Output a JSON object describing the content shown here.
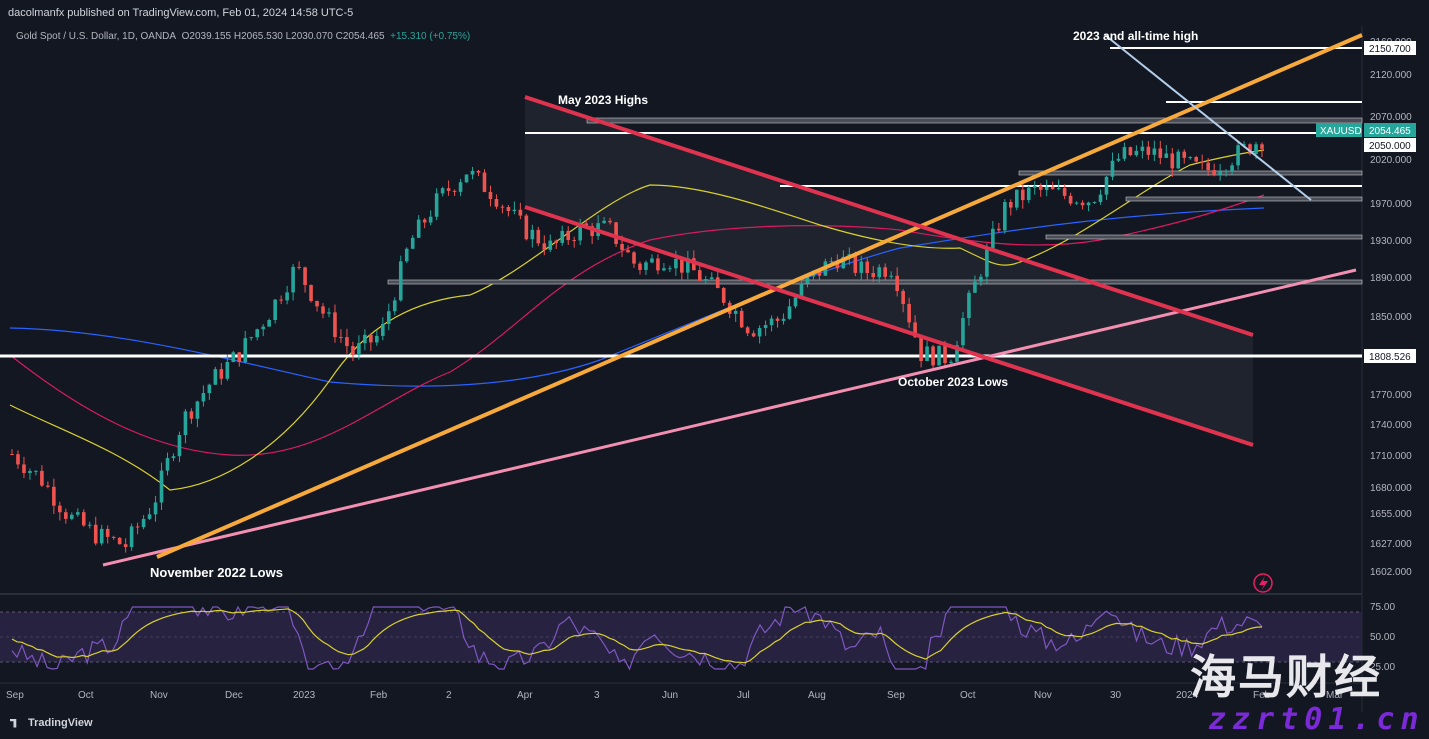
{
  "header": {
    "publisher": "dacolmanfx published on TradingView.com, Feb 01, 2024 14:58 UTC-5",
    "symbol": "Gold Spot / U.S. Dollar, 1D, OANDA",
    "ohlc": "O2039.155  H2065.530  L2030.070  C2054.465",
    "change": "+15.310 (+0.75%)"
  },
  "annotations": {
    "ath": "2023 and all-time high",
    "may": "May 2023 Highs",
    "oct": "October 2023 Lows",
    "nov": "November 2022 Lows"
  },
  "price_axis": {
    "ticks": [
      "2160.000",
      "2120.000",
      "2070.000",
      "2020.000",
      "1970.000",
      "1930.000",
      "1890.000",
      "1850.000",
      "1770.000",
      "1740.000",
      "1710.000",
      "1680.000",
      "1655.000",
      "1627.000",
      "1602.000"
    ],
    "labels": {
      "ath": "2150.700",
      "symbol": "XAUUSD",
      "last": "2054.465",
      "level2050": "2050.000",
      "level1808": "1808.526"
    }
  },
  "rsi_axis": {
    "ticks": [
      "75.00",
      "50.00",
      "25.00"
    ]
  },
  "time_axis": {
    "ticks": [
      "Sep",
      "Oct",
      "Nov",
      "Dec",
      "2023",
      "Feb",
      "2",
      "Apr",
      "3",
      "Jun",
      "Jul",
      "Aug",
      "Sep",
      "Oct",
      "Nov",
      "30",
      "2024",
      "Feb",
      "Mar"
    ]
  },
  "footer": {
    "brand": "TradingView"
  },
  "watermark": {
    "line1": "海马财经",
    "line2": "zzrt01.cn"
  },
  "colors": {
    "background": "#131722",
    "up": "#26a69a",
    "down": "#ef5350",
    "trend_orange": "#f7a93b",
    "channel_red": "#e0334f",
    "support_pink": "#f48fb1",
    "ma_yellow": "#d9d12c",
    "ma_red": "#d81b60",
    "ma_blue": "#2962ff",
    "rsi": "#7e57c2"
  },
  "chart_data": {
    "type": "candlestick",
    "instrument": "Gold Spot / U.S. Dollar",
    "timeframe": "1D",
    "horizontal_levels": [
      2150.7,
      2090,
      2063,
      2050,
      2005,
      1985,
      1977,
      1933,
      1888,
      1808.526
    ],
    "series": [
      {
        "name": "close",
        "values": [
          1725,
          1700,
          1660,
          1640,
          1630,
          1675,
          1760,
          1800,
          1830,
          1870,
          1920,
          1870,
          1830,
          1850,
          1945,
          1990,
          2020,
          1995,
          1960,
          1940,
          1960,
          1960,
          1920,
          1930,
          1915,
          1890,
          1855,
          1865,
          1905,
          1930,
          1915,
          1920,
          1830,
          1825,
          1910,
          1985,
          2000,
          1995,
          1990,
          2035,
          2040,
          2030,
          2020,
          2035,
          2054
        ]
      }
    ],
    "annotations": [
      "2023 and all-time high",
      "May 2023 Highs",
      "October 2023 Lows",
      "November 2022 Lows"
    ]
  }
}
